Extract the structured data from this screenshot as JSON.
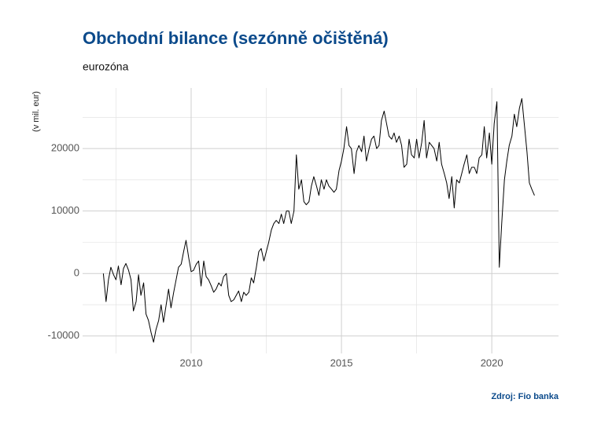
{
  "chart_data": {
    "type": "line",
    "title": "Obchodní bilance (sezónně očištěná)",
    "subtitle": "eurozóna",
    "ylabel": "(v mil. eur)",
    "caption": "Zdroj: Fio banka",
    "color": "#000000",
    "grid": true,
    "xlim": [
      2006.39,
      2022.22
    ],
    "ylim": [
      -12800,
      29700
    ],
    "xticks": [
      2010,
      2015,
      2020
    ],
    "yticks": [
      -10000,
      0,
      10000,
      20000
    ],
    "xminor": [
      2007.5,
      2012.5,
      2017.5
    ],
    "yminor": [
      -5000,
      5000,
      15000,
      25000
    ],
    "x": [
      2007.08,
      2007.17,
      2007.25,
      2007.33,
      2007.42,
      2007.5,
      2007.58,
      2007.67,
      2007.75,
      2007.83,
      2007.92,
      2008,
      2008.08,
      2008.17,
      2008.25,
      2008.33,
      2008.42,
      2008.5,
      2008.58,
      2008.67,
      2008.75,
      2008.83,
      2008.92,
      2009,
      2009.08,
      2009.17,
      2009.25,
      2009.33,
      2009.42,
      2009.5,
      2009.58,
      2009.67,
      2009.75,
      2009.83,
      2009.92,
      2010,
      2010.08,
      2010.17,
      2010.25,
      2010.33,
      2010.42,
      2010.5,
      2010.58,
      2010.67,
      2010.75,
      2010.83,
      2010.92,
      2011,
      2011.08,
      2011.17,
      2011.25,
      2011.33,
      2011.42,
      2011.5,
      2011.58,
      2011.67,
      2011.75,
      2011.83,
      2011.92,
      2012,
      2012.08,
      2012.17,
      2012.25,
      2012.33,
      2012.42,
      2012.5,
      2012.58,
      2012.67,
      2012.75,
      2012.83,
      2012.92,
      2013,
      2013.08,
      2013.17,
      2013.25,
      2013.33,
      2013.42,
      2013.5,
      2013.58,
      2013.67,
      2013.75,
      2013.83,
      2013.92,
      2014,
      2014.08,
      2014.17,
      2014.25,
      2014.33,
      2014.42,
      2014.5,
      2014.58,
      2014.67,
      2014.75,
      2014.83,
      2014.92,
      2015,
      2015.08,
      2015.17,
      2015.25,
      2015.33,
      2015.42,
      2015.5,
      2015.58,
      2015.67,
      2015.75,
      2015.83,
      2015.92,
      2016,
      2016.08,
      2016.17,
      2016.25,
      2016.33,
      2016.42,
      2016.5,
      2016.58,
      2016.67,
      2016.75,
      2016.83,
      2016.92,
      2017,
      2017.08,
      2017.17,
      2017.25,
      2017.33,
      2017.42,
      2017.5,
      2017.58,
      2017.67,
      2017.75,
      2017.83,
      2017.92,
      2018,
      2018.08,
      2018.17,
      2018.25,
      2018.33,
      2018.42,
      2018.5,
      2018.58,
      2018.67,
      2018.75,
      2018.83,
      2018.92,
      2019,
      2019.08,
      2019.17,
      2019.25,
      2019.33,
      2019.42,
      2019.5,
      2019.58,
      2019.67,
      2019.75,
      2019.83,
      2019.92,
      2020,
      2020.08,
      2020.17,
      2020.25,
      2020.33,
      2020.42,
      2020.5,
      2020.58,
      2020.67,
      2020.75,
      2020.83,
      2020.92,
      2021,
      2021.08,
      2021.17,
      2021.25,
      2021.33,
      2021.42
    ],
    "values": [
      0,
      -4500,
      -1000,
      1000,
      -200,
      -1000,
      1200,
      -1800,
      800,
      1600,
      500,
      -1000,
      -6000,
      -4500,
      -200,
      -3500,
      -1500,
      -6500,
      -7500,
      -9500,
      -11000,
      -9000,
      -7500,
      -5000,
      -7800,
      -5000,
      -2500,
      -5500,
      -3000,
      -1000,
      1000,
      1500,
      3500,
      5300,
      2500,
      300,
      500,
      1500,
      2000,
      -2000,
      2000,
      -500,
      -1000,
      -2000,
      -3000,
      -2500,
      -1500,
      -2000,
      -500,
      0,
      -3500,
      -4500,
      -4200,
      -3500,
      -2800,
      -4500,
      -3000,
      -3500,
      -3000,
      -700,
      -1500,
      1000,
      3500,
      4000,
      2000,
      3500,
      5000,
      7000,
      8000,
      8500,
      8000,
      9500,
      8000,
      10000,
      10000,
      8000,
      10000,
      19000,
      13500,
      15000,
      11500,
      11000,
      11500,
      14000,
      15500,
      14000,
      12500,
      15000,
      13500,
      15000,
      14000,
      13500,
      13000,
      13500,
      16500,
      18000,
      20000,
      23500,
      20500,
      20000,
      16000,
      19500,
      20500,
      19500,
      22000,
      18000,
      20000,
      21500,
      22000,
      20000,
      20500,
      24500,
      26000,
      24000,
      22000,
      21500,
      22500,
      21000,
      22000,
      20500,
      17000,
      17500,
      21500,
      19000,
      18500,
      21500,
      18500,
      21000,
      24500,
      18500,
      21000,
      20500,
      20000,
      18000,
      21000,
      17500,
      16000,
      14500,
      12000,
      15500,
      10500,
      15000,
      14500,
      16000,
      17500,
      19000,
      16000,
      17000,
      17000,
      16000,
      18500,
      19000,
      23500,
      18500,
      22500,
      17500,
      24000,
      27500,
      1000,
      8000,
      15000,
      18000,
      20500,
      22000,
      25500,
      23500,
      26500,
      28000,
      24000,
      19500,
      14500,
      13500,
      12500
    ]
  }
}
